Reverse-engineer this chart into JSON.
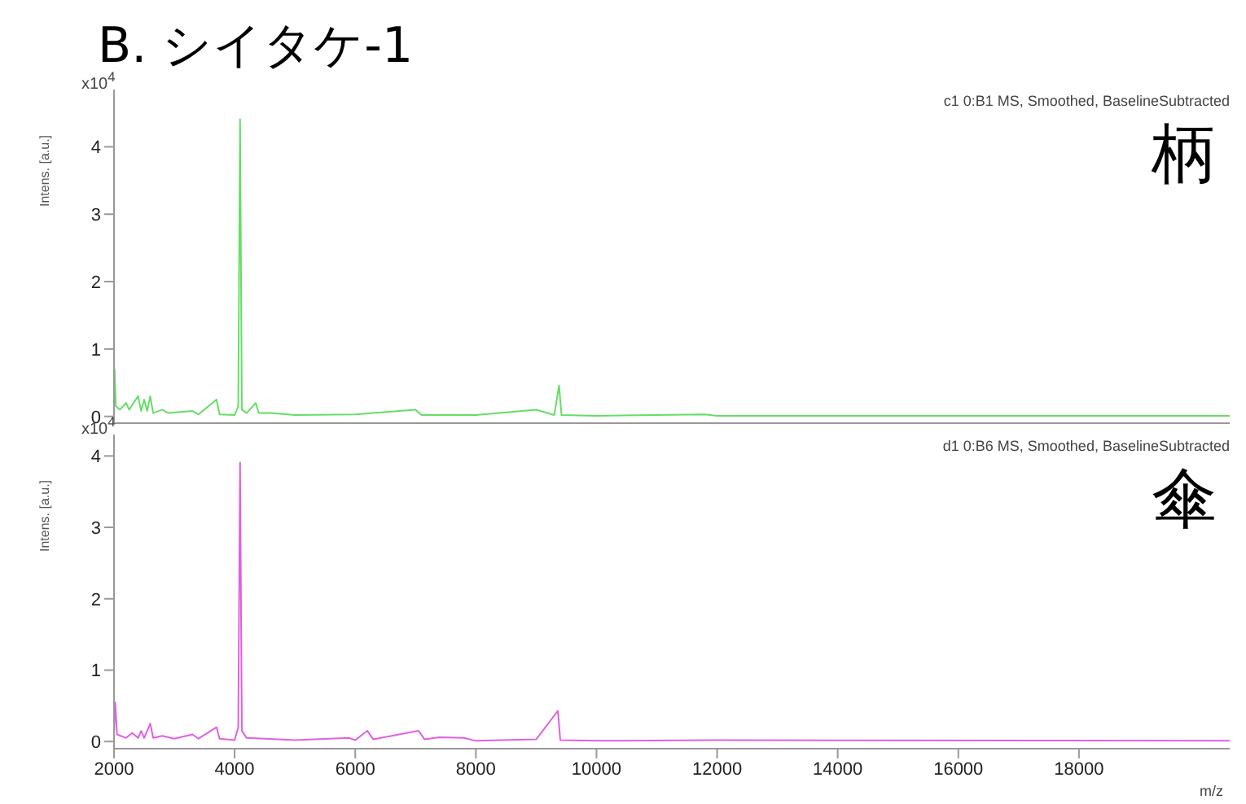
{
  "chart_data": [
    {
      "type": "line",
      "title": "B. シイタケ-1",
      "ylabel": "Intens. [a.u.]",
      "annotations": [
        "x10$^{4}$",
        "c1 0:B1 MS, Smoothed, BaselineSubtracted",
        "柄"
      ],
      "tick_labels": "y",
      "x": [
        2000,
        2010,
        2030,
        2100,
        2200,
        2250,
        2400,
        2450,
        2500,
        2550,
        2600,
        2650,
        2800,
        2900,
        3300,
        3400,
        3700,
        3750,
        4000,
        4060,
        4090,
        4120,
        4200,
        4350,
        4400,
        4600,
        5000,
        6000,
        7000,
        7100,
        8000,
        9000,
        9300,
        9380,
        9420,
        10000,
        11800,
        12000,
        14000,
        20500
      ],
      "series": [
        {
          "color": "#66dd66",
          "values": [
            0.1,
            0.7,
            0.15,
            0.1,
            0.2,
            0.1,
            0.3,
            0.08,
            0.25,
            0.08,
            0.3,
            0.05,
            0.1,
            0.05,
            0.08,
            0.03,
            0.25,
            0.03,
            0.02,
            0.15,
            4.41,
            0.1,
            0.05,
            0.2,
            0.05,
            0.05,
            0.02,
            0.03,
            0.1,
            0.02,
            0.02,
            0.1,
            0.02,
            0.46,
            0.02,
            0.01,
            0.03,
            0.01,
            0.01,
            0.01
          ]
        }
      ],
      "xlim": [
        2000,
        20500
      ],
      "xticks": [
        2000,
        4000,
        6000,
        8000,
        10000,
        12000,
        14000,
        16000,
        18000
      ],
      "ylim": [
        -0.1,
        4.85
      ],
      "yticks": [
        0,
        1,
        2,
        3,
        4
      ]
    },
    {
      "type": "line",
      "xlabel": "m/z",
      "ylabel": "Intens. [a.u.]",
      "annotations": [
        "x10$^{4}$",
        "d1 0:B6 MS, Smoothed, BaselineSubtracted",
        "傘"
      ],
      "x": [
        2000,
        2020,
        2050,
        2200,
        2300,
        2400,
        2450,
        2500,
        2600,
        2650,
        2800,
        3000,
        3300,
        3400,
        3700,
        3750,
        4000,
        4060,
        4090,
        4120,
        4200,
        4500,
        5000,
        5900,
        6000,
        6200,
        6300,
        7050,
        7150,
        7400,
        7800,
        8000,
        9000,
        9360,
        9400,
        10000,
        12000,
        20500
      ],
      "series": [
        {
          "color": "#e060e0",
          "values": [
            0.1,
            0.55,
            0.1,
            0.05,
            0.12,
            0.05,
            0.15,
            0.05,
            0.25,
            0.05,
            0.08,
            0.04,
            0.1,
            0.04,
            0.2,
            0.04,
            0.02,
            0.2,
            3.91,
            0.15,
            0.05,
            0.04,
            0.02,
            0.05,
            0.02,
            0.15,
            0.03,
            0.15,
            0.03,
            0.06,
            0.05,
            0.01,
            0.03,
            0.43,
            0.02,
            0.01,
            0.02,
            0.01
          ]
        }
      ],
      "xlim": [
        2000,
        20500
      ],
      "xticks": [
        2000,
        4000,
        6000,
        8000,
        10000,
        12000,
        14000,
        16000,
        18000
      ],
      "ylim": [
        -0.1,
        4.3
      ],
      "yticks": [
        0,
        1,
        2,
        3,
        4
      ]
    }
  ]
}
